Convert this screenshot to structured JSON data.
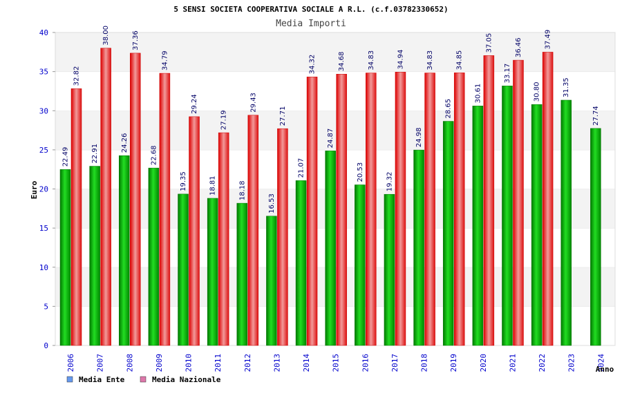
{
  "chart_data": {
    "type": "bar",
    "title": "5 SENSI SOCIETA COOPERATIVA SOCIALE A R.L. (c.f.03782330652)",
    "subtitle": "Media Importi",
    "xlabel": "Anno",
    "ylabel": "Euro",
    "ylim": [
      0,
      40
    ],
    "yticks": [
      0,
      5,
      10,
      15,
      20,
      25,
      30,
      35,
      40
    ],
    "grid": true,
    "legend_position": "bottom-left",
    "categories": [
      "2006",
      "2007",
      "2008",
      "2009",
      "2010",
      "2011",
      "2012",
      "2013",
      "2014",
      "2015",
      "2016",
      "2017",
      "2018",
      "2019",
      "2020",
      "2021",
      "2022",
      "2023",
      "2024"
    ],
    "series": [
      {
        "name": "Media Ente",
        "color": "#00aa00",
        "legend_color": "#6699ee",
        "values": [
          22.49,
          22.91,
          24.26,
          22.68,
          19.35,
          18.81,
          18.18,
          16.53,
          21.07,
          24.87,
          20.53,
          19.32,
          24.98,
          28.65,
          30.61,
          33.17,
          30.8,
          31.35,
          27.74
        ],
        "labels": [
          "22.49",
          "22.91",
          "24.26",
          "22.68",
          "19.35",
          "18.81",
          "18.18",
          "16.53",
          "21.07",
          "24.87",
          "20.53",
          "19.32",
          "24.98",
          "28.65",
          "30.61",
          "33.17",
          "30.80",
          "31.35",
          "27.74"
        ]
      },
      {
        "name": "Media Nazionale",
        "color": "#ee1111",
        "legend_color": "#dd77aa",
        "values": [
          32.82,
          38.0,
          37.36,
          34.79,
          29.24,
          27.19,
          29.43,
          27.71,
          34.32,
          34.68,
          34.83,
          34.94,
          34.83,
          34.85,
          37.05,
          36.46,
          37.49,
          null,
          null
        ],
        "labels": [
          "32.82",
          "38.00",
          "37.36",
          "34.79",
          "29.24",
          "27.19",
          "29.43",
          "27.71",
          "34.32",
          "34.68",
          "34.83",
          "34.94",
          "34.83",
          "34.85",
          "37.05",
          "36.46",
          "37.49",
          null,
          null
        ]
      }
    ]
  }
}
